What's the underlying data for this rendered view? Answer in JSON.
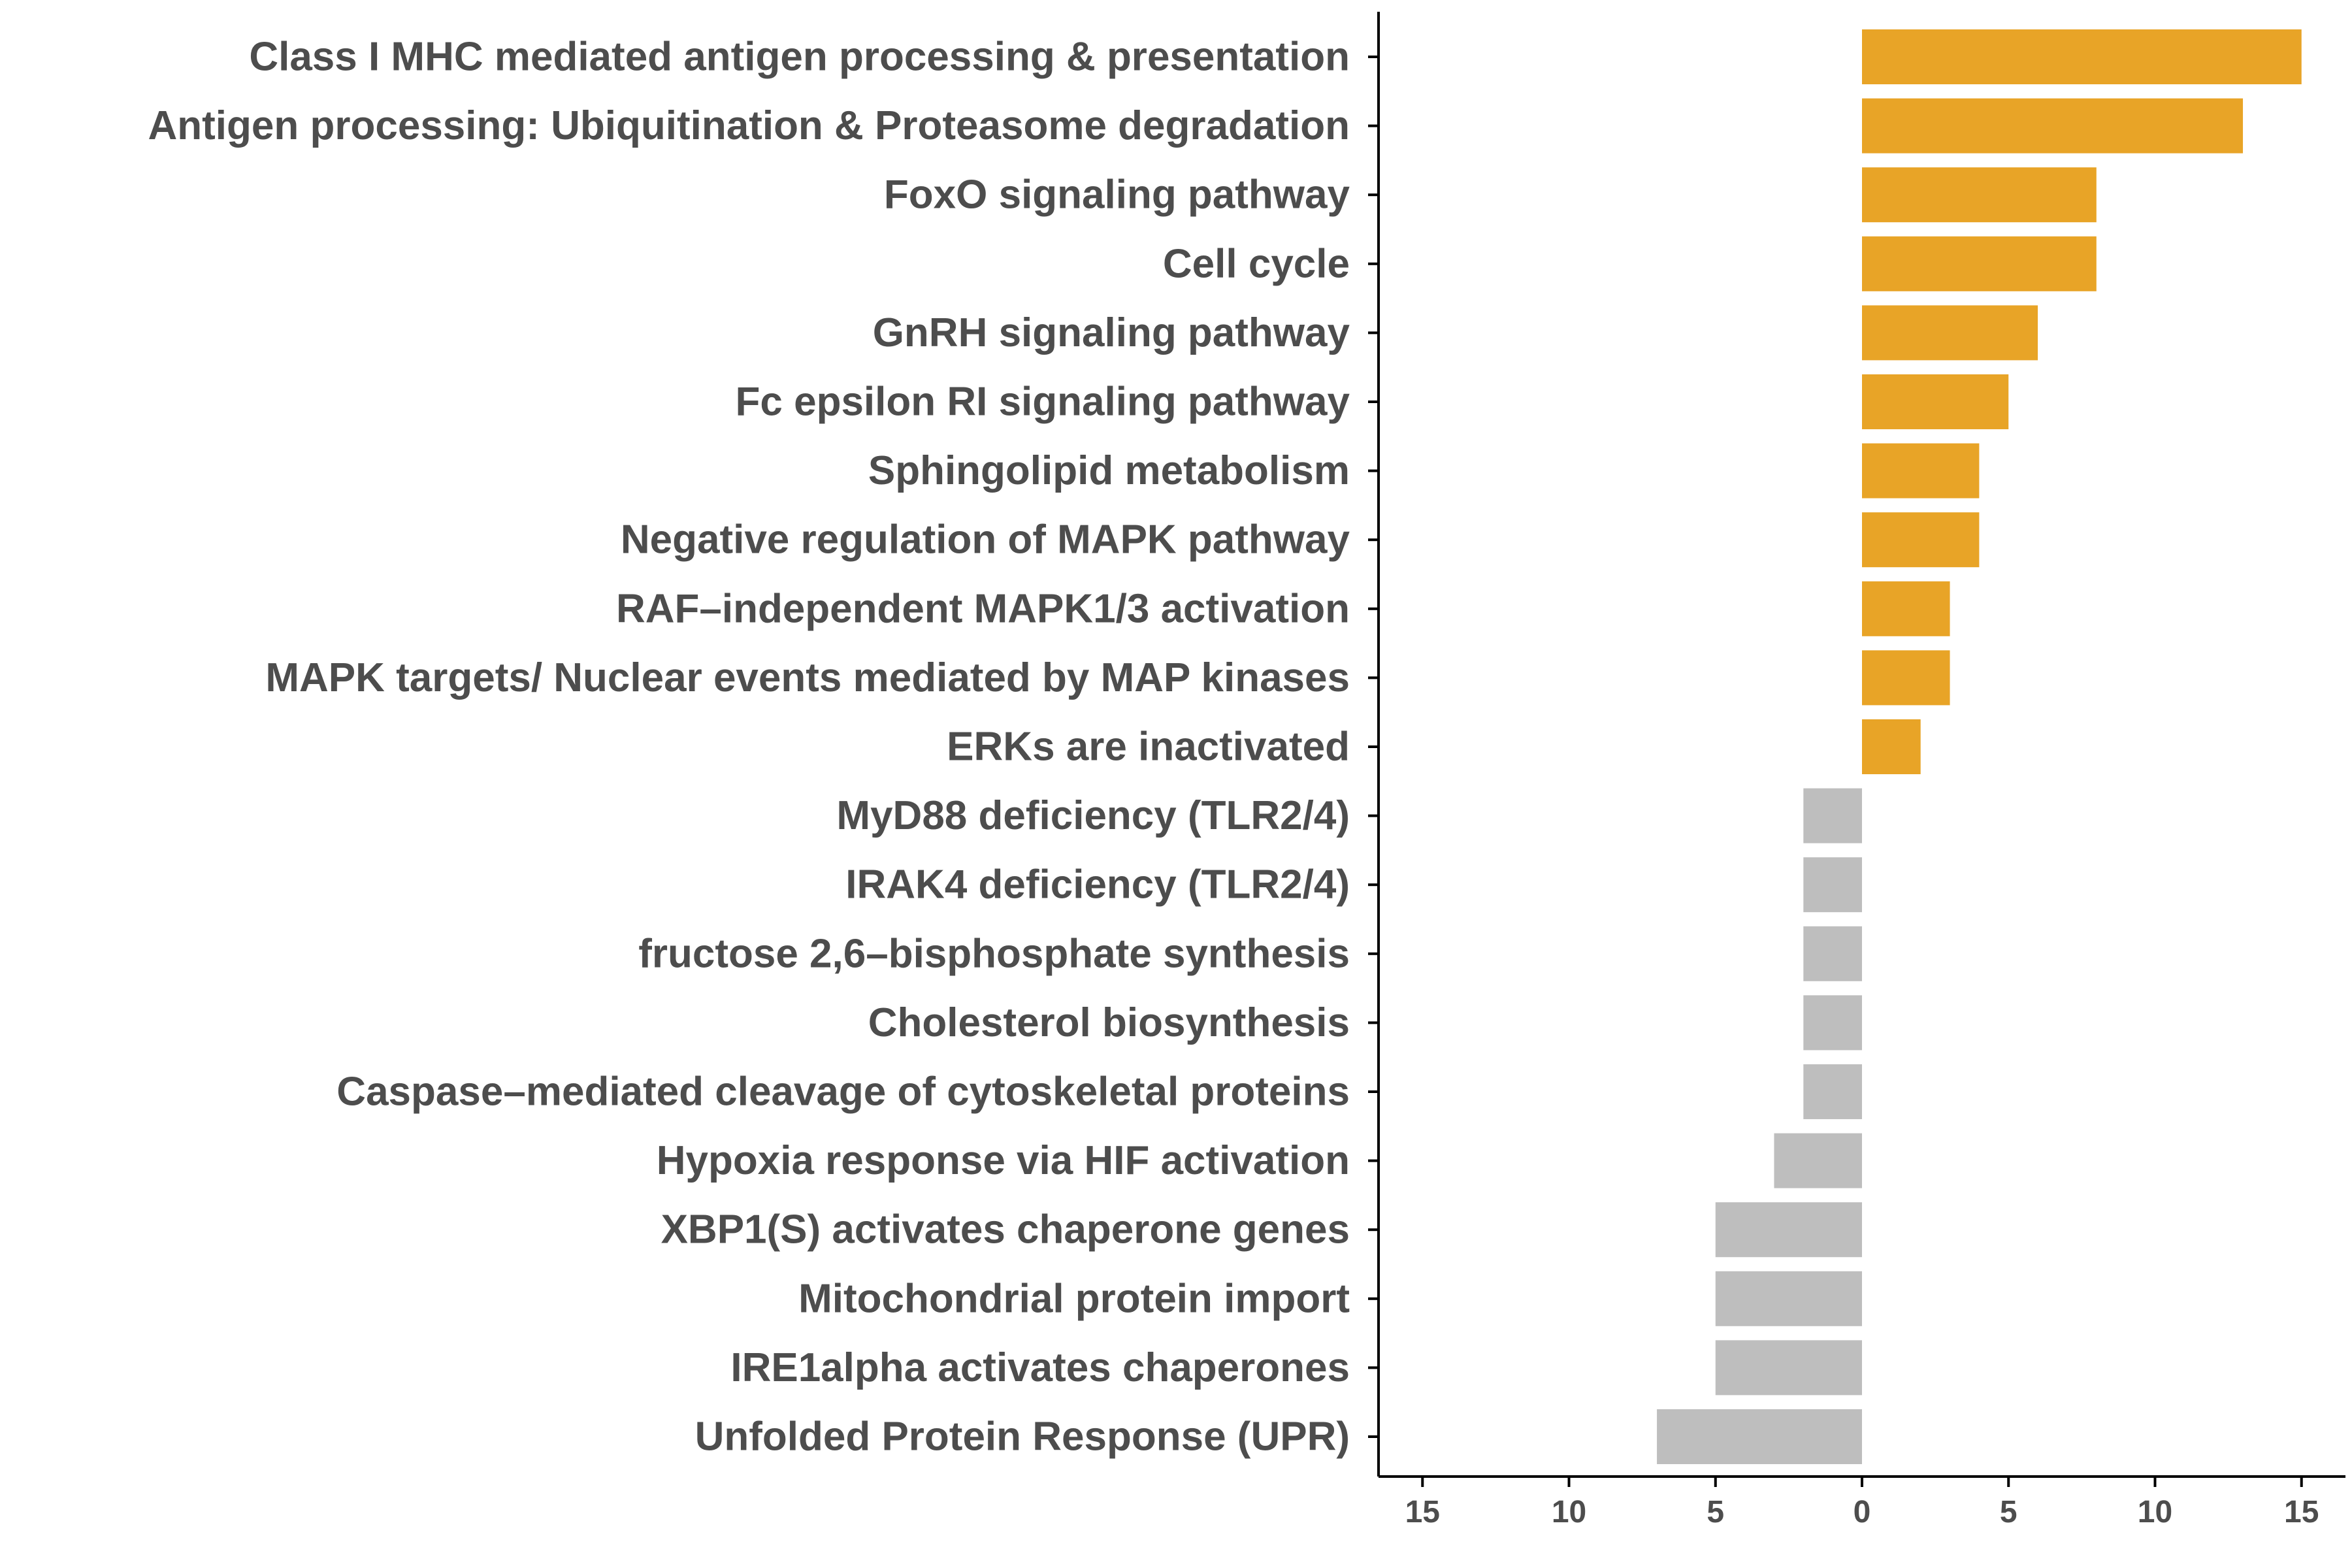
{
  "chart_data": {
    "type": "bar",
    "orientation": "horizontal",
    "categories": [
      "Class I MHC mediated antigen processing & presentation",
      "Antigen processing: Ubiquitination & Proteasome degradation",
      "FoxO signaling pathway",
      "Cell cycle",
      "GnRH signaling pathway",
      "Fc epsilon RI signaling pathway",
      "Sphingolipid metabolism",
      "Negative regulation of MAPK pathway",
      "RAF–independent MAPK1/3 activation",
      "MAPK targets/ Nuclear events mediated by MAP kinases",
      "ERKs are inactivated",
      "MyD88 deficiency (TLR2/4)",
      "IRAK4 deficiency (TLR2/4)",
      "fructose 2,6–bisphosphate synthesis",
      "Cholesterol biosynthesis",
      "Caspase–mediated cleavage of cytoskeletal proteins",
      "Hypoxia response via HIF activation",
      "XBP1(S) activates chaperone genes",
      "Mitochondrial protein import",
      "IRE1alpha activates chaperones",
      "Unfolded Protein Response (UPR)"
    ],
    "values": [
      15,
      13,
      8,
      8,
      6,
      5,
      4,
      4,
      3,
      3,
      2,
      -2,
      -2,
      -2,
      -2,
      -2,
      -3,
      -5,
      -5,
      -5,
      -7
    ],
    "xlim": [
      -16.5,
      16.5
    ],
    "x_ticks": [
      {
        "value": -15,
        "label": "15"
      },
      {
        "value": -10,
        "label": "10"
      },
      {
        "value": -5,
        "label": "5"
      },
      {
        "value": 0,
        "label": "0"
      },
      {
        "value": 5,
        "label": "5"
      },
      {
        "value": 10,
        "label": "10"
      },
      {
        "value": 15,
        "label": "15"
      }
    ],
    "colors": {
      "positive": "#E8A427",
      "negative": "#BEBEBE",
      "axis": "#000000",
      "text": "#4D4D4D"
    },
    "grid": false,
    "title": "",
    "xlabel": "",
    "ylabel": ""
  }
}
